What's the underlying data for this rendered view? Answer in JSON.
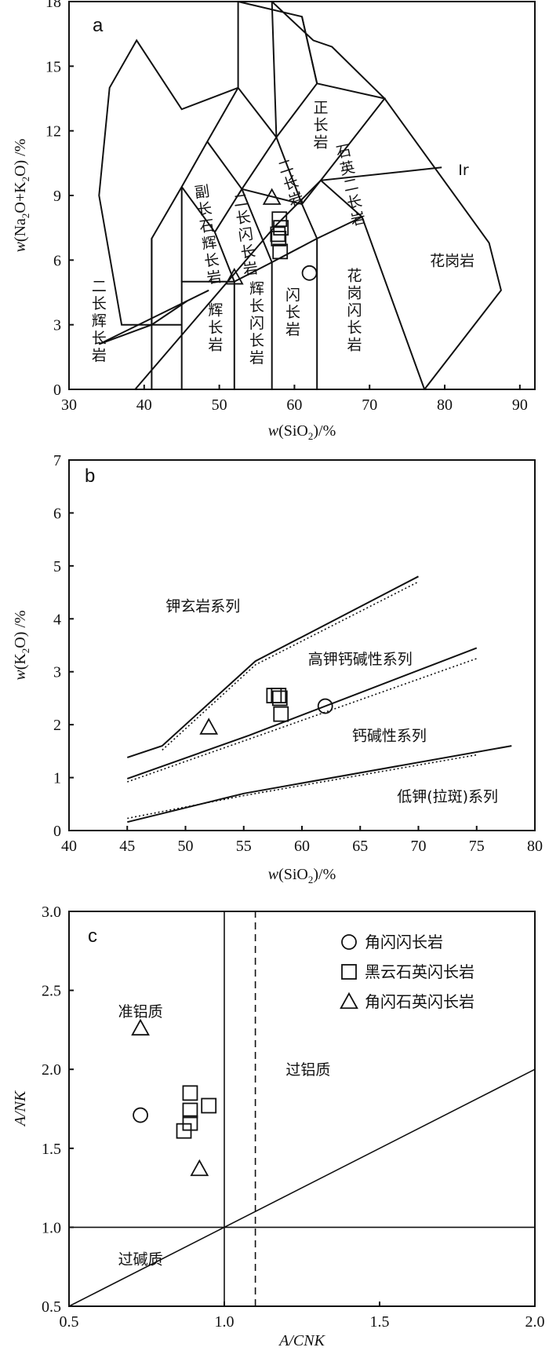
{
  "chart_data": [
    {
      "panel": "a",
      "type": "scatter",
      "xlabel": "w(SiO2)/%",
      "ylabel": "w(Na2O+K2O)/%",
      "xlim": [
        30,
        92
      ],
      "ylim": [
        0,
        18
      ],
      "xticks": [
        30,
        40,
        50,
        60,
        70,
        80,
        90
      ],
      "yticks": [
        0,
        3,
        6,
        9,
        12,
        15,
        18
      ],
      "region_labels": [
        {
          "text": "正长岩",
          "x": 63.5,
          "y": 12.3,
          "vertical": true
        },
        {
          "text": "石英二长岩",
          "x": 67.5,
          "y": 9.5,
          "vertical": true,
          "rotate": 12
        },
        {
          "text": "二长岩",
          "x": 59.5,
          "y": 9.6,
          "vertical": true,
          "rotate": 18
        },
        {
          "text": "副长石辉长岩",
          "x": 48.5,
          "y": 7.2,
          "vertical": true,
          "rotate": 8
        },
        {
          "text": "二长闪长岩",
          "x": 53.5,
          "y": 7.2,
          "vertical": true,
          "rotate": 8
        },
        {
          "text": "花岗岩",
          "x": 81,
          "y": 6.0,
          "vertical": false
        },
        {
          "text": "花岗闪长岩",
          "x": 68,
          "y": 3.7,
          "vertical": true
        },
        {
          "text": "闪长岩",
          "x": 59.8,
          "y": 3.6,
          "vertical": true
        },
        {
          "text": "辉长闪长岩",
          "x": 55,
          "y": 3.1,
          "vertical": true
        },
        {
          "text": "辉长岩",
          "x": 49.5,
          "y": 2.9,
          "vertical": true
        },
        {
          "text": "二长辉长岩",
          "x": 34,
          "y": 3.2,
          "vertical": true
        },
        {
          "text": "Ir",
          "x": 82.5,
          "y": 10.2,
          "vertical": false
        }
      ],
      "series": [
        {
          "marker": "circle",
          "points": [
            [
              62,
              5.4
            ]
          ]
        },
        {
          "marker": "square",
          "points": [
            [
              57.8,
              7.2
            ],
            [
              58.0,
              7.9
            ],
            [
              58.2,
              7.5
            ],
            [
              57.9,
              7.0
            ],
            [
              58.1,
              6.4
            ]
          ]
        },
        {
          "marker": "triangle",
          "points": [
            [
              57.0,
              8.9
            ],
            [
              52.0,
              5.2
            ]
          ]
        }
      ]
    },
    {
      "panel": "b",
      "type": "scatter",
      "xlabel": "w(SiO2)/%",
      "ylabel": "w(K2O)/%",
      "xlim": [
        40,
        80
      ],
      "ylim": [
        0,
        7
      ],
      "xticks": [
        40,
        45,
        50,
        55,
        60,
        65,
        70,
        75,
        80
      ],
      "yticks": [
        0,
        1,
        2,
        3,
        4,
        5,
        6,
        7
      ],
      "region_labels": [
        {
          "text": "钾玄岩系列",
          "x": 51.5,
          "y": 4.25
        },
        {
          "text": "高钾钙碱性系列",
          "x": 65,
          "y": 3.25
        },
        {
          "text": "钙碱性系列",
          "x": 67.5,
          "y": 1.8
        },
        {
          "text": "低钾(拉斑)系列",
          "x": 72.5,
          "y": 0.65
        }
      ],
      "series": [
        {
          "marker": "circle",
          "points": [
            [
              62,
              2.35
            ]
          ]
        },
        {
          "marker": "square",
          "points": [
            [
              57.6,
              2.55
            ],
            [
              58.0,
              2.55
            ],
            [
              58.1,
              2.5
            ],
            [
              58.2,
              2.2
            ]
          ]
        },
        {
          "marker": "triangle",
          "points": [
            [
              52,
              1.95
            ]
          ]
        }
      ]
    },
    {
      "panel": "c",
      "type": "scatter",
      "xlabel": "A/CNK",
      "ylabel": "A/NK",
      "xlim": [
        0.5,
        2.0
      ],
      "ylim": [
        0.5,
        3.0
      ],
      "xticks": [
        0.5,
        1.0,
        1.5,
        2.0
      ],
      "xtick_labels": [
        "0.5",
        "1.0",
        "1.5",
        "2.0"
      ],
      "yticks": [
        0.5,
        1.0,
        1.5,
        2.0,
        2.5,
        3.0
      ],
      "ytick_labels": [
        "0.5",
        "1.0",
        "1.5",
        "2.0",
        "2.5",
        "3.0"
      ],
      "region_labels": [
        {
          "text": "准铝质",
          "x": 0.73,
          "y": 2.37
        },
        {
          "text": "过铝质",
          "x": 1.27,
          "y": 2.0
        },
        {
          "text": "过碱质",
          "x": 0.73,
          "y": 0.8
        }
      ],
      "legend": {
        "position": "top-right",
        "entries": [
          {
            "marker": "circle",
            "label": "角闪闪长岩"
          },
          {
            "marker": "square",
            "label": "黑云石英闪长岩"
          },
          {
            "marker": "triangle",
            "label": "角闪石英闪长岩"
          }
        ]
      },
      "series": [
        {
          "marker": "circle",
          "points": [
            [
              0.73,
              1.71
            ]
          ]
        },
        {
          "marker": "square",
          "points": [
            [
              0.89,
              1.85
            ],
            [
              0.89,
              1.74
            ],
            [
              0.89,
              1.66
            ],
            [
              0.87,
              1.61
            ],
            [
              0.95,
              1.77
            ]
          ]
        },
        {
          "marker": "triangle",
          "points": [
            [
              0.73,
              2.26
            ],
            [
              0.92,
              1.37
            ]
          ]
        }
      ]
    }
  ]
}
